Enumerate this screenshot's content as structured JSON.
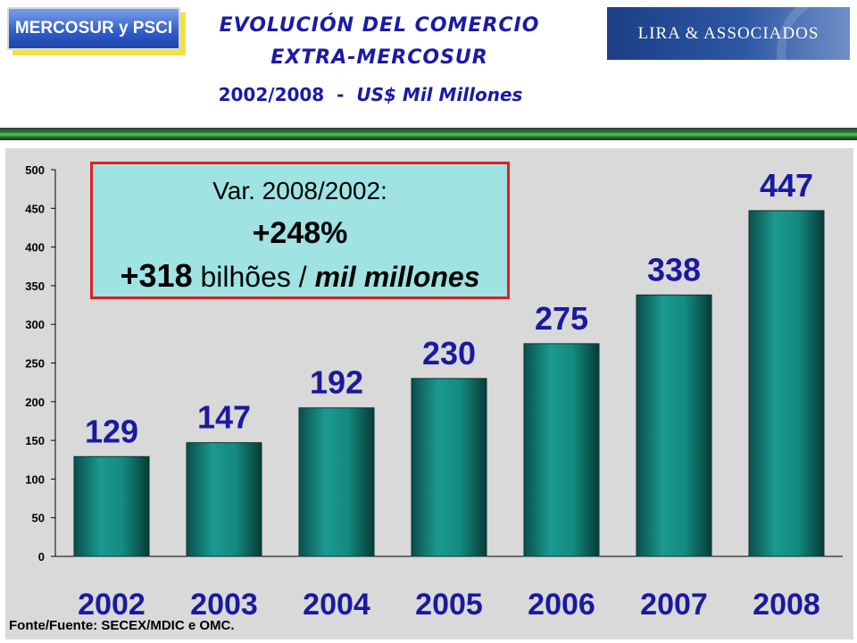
{
  "header": {
    "left_logo": "MERCOSUR y PSCI",
    "title_line1": "EVOLUCIÓN DEL COMERCIO",
    "title_line2": "EXTRA-MERCOSUR",
    "subtitle_years": "2002/2008  -  ",
    "subtitle_unit": "US$ Mil Millones",
    "right_logo": "LIRA & ASSOCIADOS"
  },
  "callout": {
    "line1": "Var. 2008/2002:",
    "line2": "+248%",
    "line3_number": "+318",
    "line3_text": " bilhões / ",
    "line3_italic": "mil millones",
    "border_color": "#e02020",
    "background": "#9fe3e3"
  },
  "source": "Fonte/Fuente: SECEX/MDIC e OMC.",
  "colors": {
    "bar": "#0f7a72",
    "label": "#1a1aa0",
    "panel": "#d9d9d9"
  },
  "chart_data": {
    "type": "bar",
    "title": "",
    "xlabel": "",
    "ylabel": "",
    "categories": [
      "2002",
      "2003",
      "2004",
      "2005",
      "2006",
      "2007",
      "2008"
    ],
    "values": [
      129,
      147,
      192,
      230,
      275,
      338,
      447
    ],
    "data_labels": [
      "129",
      "147",
      "192",
      "230",
      "275",
      "338",
      "447"
    ],
    "y_ticks": [
      "0",
      "50",
      "100",
      "150",
      "200",
      "250",
      "300",
      "350",
      "400",
      "450",
      "500"
    ],
    "ylim": [
      0,
      500
    ],
    "grid": false,
    "legend": "none"
  }
}
